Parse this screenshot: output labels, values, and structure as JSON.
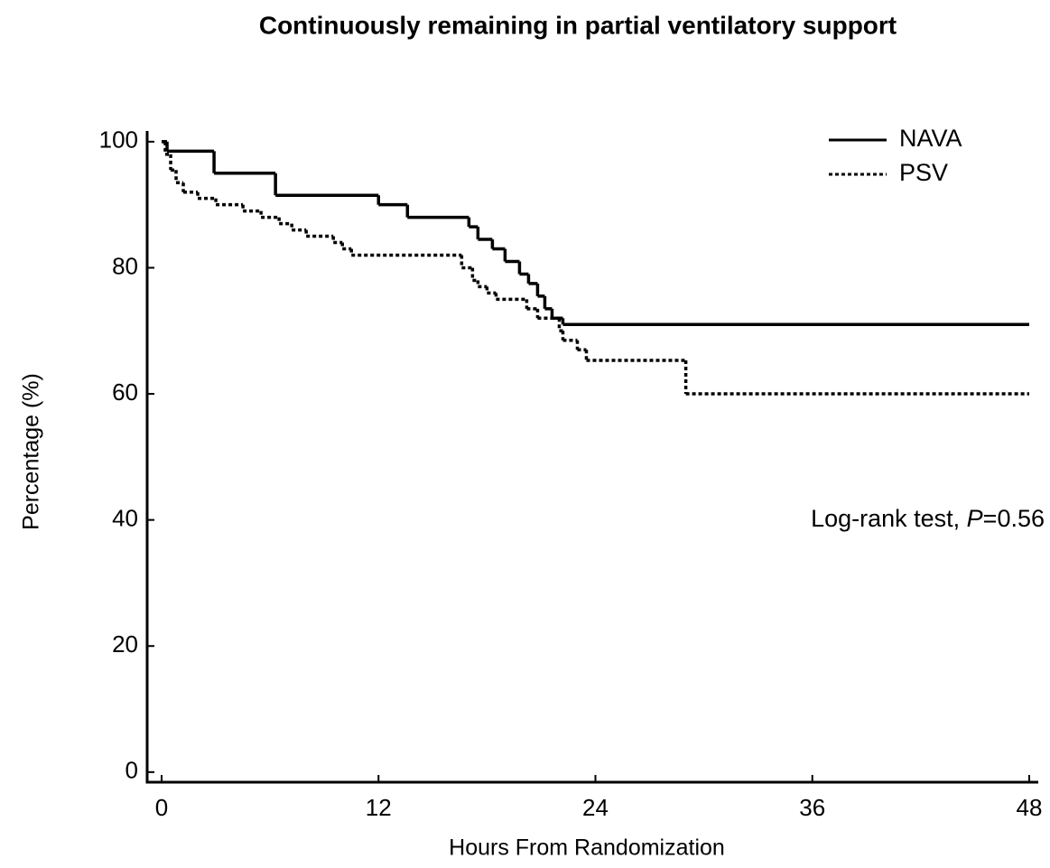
{
  "chart_data": {
    "type": "step",
    "title": "Continuously remaining in partial ventilatory support",
    "x_label": "Hours From Randomization",
    "y_label": "Percentage (%)",
    "annotation": [
      "Log-rank test, ",
      "P",
      "=0.56"
    ],
    "xlim": [
      -0.8,
      48.5
    ],
    "ylim": [
      -1.6,
      101.7
    ],
    "xticks": [
      0,
      12,
      24,
      36,
      48
    ],
    "yticks": [
      0,
      20,
      40,
      60,
      80,
      100
    ],
    "series": [
      {
        "name": "NAVA",
        "color": "#000000",
        "dash": "solid",
        "x": [
          0,
          0.3,
          2.9,
          6.3,
          12,
          13.6,
          17,
          17.5,
          18.3,
          19,
          19.8,
          20.3,
          20.8,
          21.2,
          21.6,
          22.2,
          48
        ],
        "values": [
          100,
          98.5,
          95,
          91.5,
          90,
          88,
          86.5,
          84.5,
          83,
          81,
          79,
          77.5,
          75.5,
          73.5,
          72,
          71,
          71
        ]
      },
      {
        "name": "PSV",
        "color": "#000000",
        "dash": "dotted",
        "x": [
          0,
          0.2,
          0.5,
          0.8,
          1.2,
          2,
          3,
          4.5,
          5.5,
          6.5,
          7.2,
          8,
          9.5,
          10,
          10.5,
          16.6,
          17.2,
          17.5,
          18,
          18.5,
          20.2,
          20.8,
          22,
          22.2,
          23,
          23.5,
          29,
          48
        ],
        "values": [
          100,
          98,
          95.5,
          93.5,
          92,
          91,
          90,
          89,
          88,
          87,
          86,
          85,
          84,
          83,
          82,
          80,
          78,
          77,
          76,
          75,
          73.5,
          72,
          70,
          68.5,
          67,
          65.3,
          60,
          60
        ]
      }
    ]
  }
}
